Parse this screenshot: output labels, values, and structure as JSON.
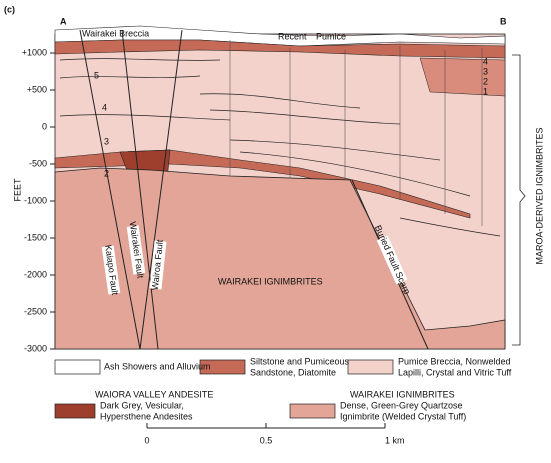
{
  "panel": "(c)",
  "section": {
    "left_end": "A",
    "right_end": "B",
    "labels": {
      "breccia": "Wairakei Breccia",
      "recent": "Recent",
      "pumice": "Pumice",
      "ignimbrites": "WAIRAKEI IGNIMBRITES"
    },
    "units_left": [
      "5",
      "4",
      "3",
      "2"
    ],
    "units_right": [
      "4",
      "3",
      "2",
      "1"
    ],
    "faults": [
      "Kaiapo Fault",
      "Wairakei Fault",
      "Wairoa Fault",
      "Buried Fault Scarp"
    ]
  },
  "yaxis": {
    "label": "FEET",
    "ticks": [
      "+1000",
      "+500",
      "0",
      "-500",
      "-1000",
      "-1500",
      "-2000",
      "-2500",
      "-3000"
    ]
  },
  "bracket_label": "MAROA-DERIVED IGNIMBRITES",
  "legend": {
    "ash": [
      "Ash Showers and Alluvium"
    ],
    "siltstone": [
      "Siltstone and Pumiceous",
      "Sandstone, Diatomite"
    ],
    "pumice_breccia": [
      "Pumice Breccia, Nonwelded",
      "Lapilli, Crystal and Vitric Tuff"
    ],
    "andesite_heading": "WAIORA VALLEY ANDESITE",
    "andesite": [
      "Dark Grey, Vesicular,",
      "Hypersthene Andesites"
    ],
    "ignimbrite_heading": "WAIRAKEI IGNIMBRITES",
    "ignimbrite": [
      "Dense, Green-Grey Quartzose",
      "Ignimbrite (Welded Crystal Tuff)"
    ]
  },
  "scale": [
    "0",
    "0.5",
    "1 km"
  ]
}
